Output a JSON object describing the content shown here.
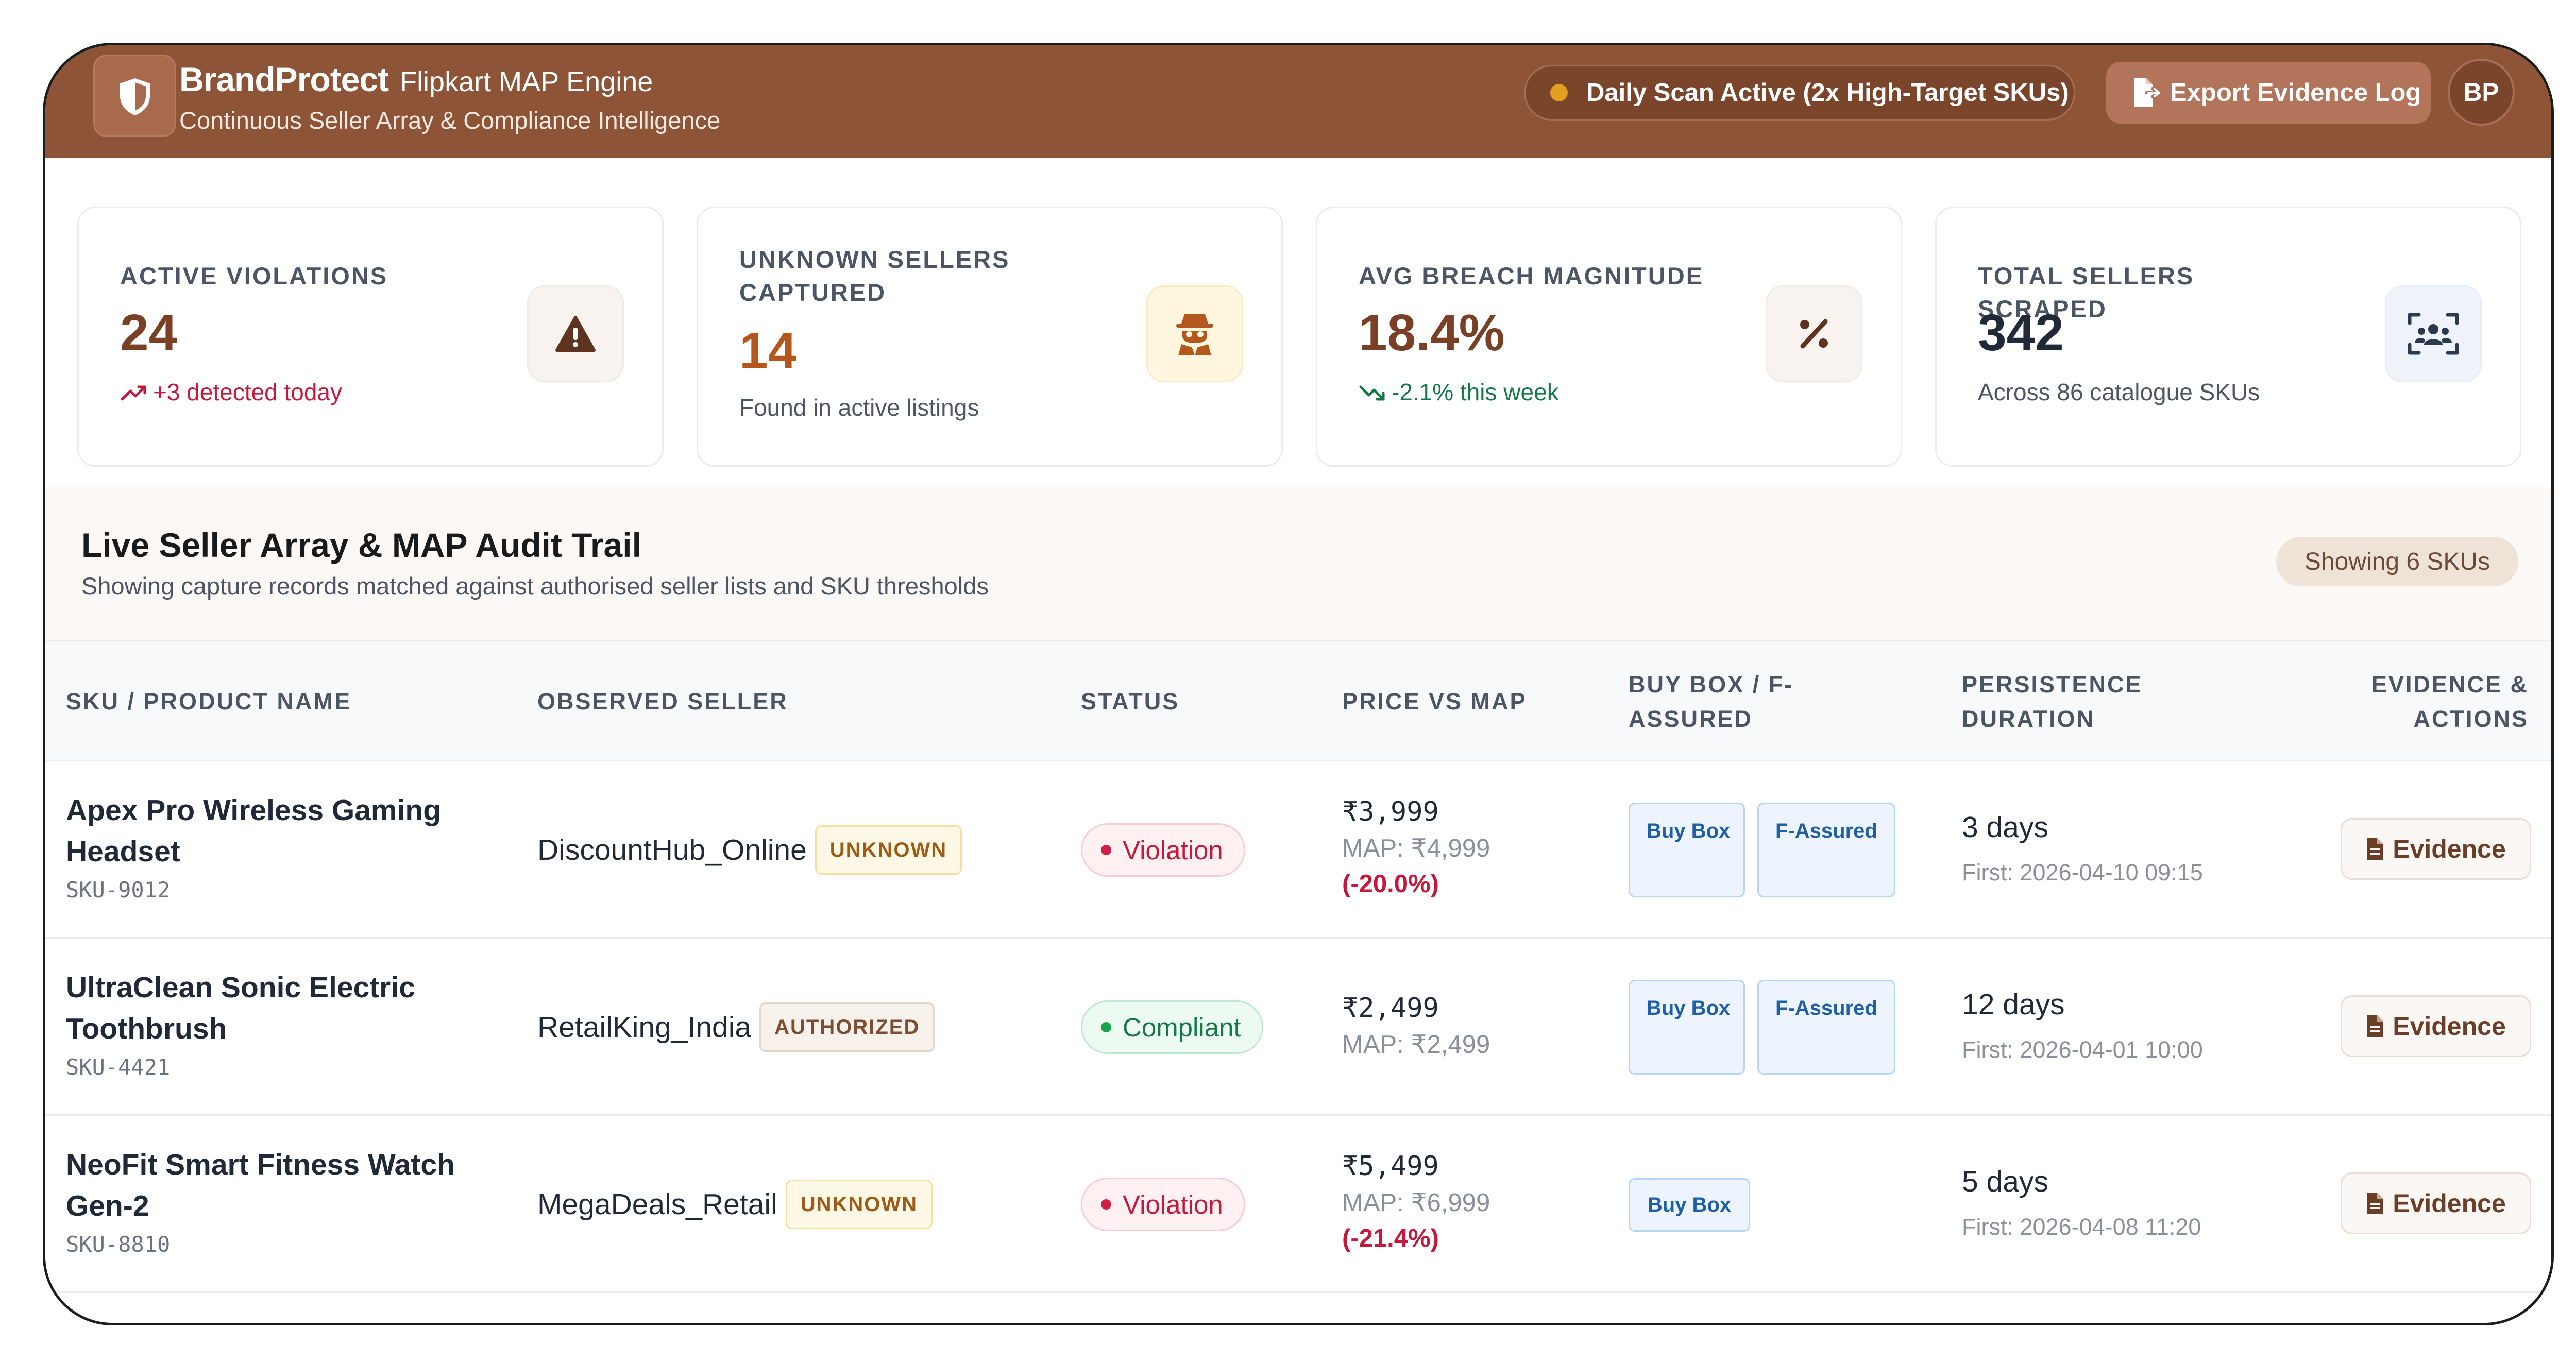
{
  "header": {
    "brand_name": "BrandProtect",
    "brand_sub": "Flipkart MAP Engine",
    "tagline": "Continuous Seller Array & Compliance Intelligence",
    "scan_status": "Daily Scan Active (2x High-Target SKUs)",
    "export_label": "Export Evidence Log",
    "avatar_initials": "BP",
    "colors": {
      "header_bg": "#8e5437",
      "scan_dot": "#e3a020"
    }
  },
  "stats": [
    {
      "label": "ACTIVE VIOLATIONS",
      "value": "24",
      "note": "+3 detected today",
      "icon": "warning-triangle-icon",
      "value_color": "#7a4026",
      "note_color": "#c5183a"
    },
    {
      "label": "UNKNOWN SELLERS CAPTURED",
      "value": "14",
      "note": "Found in active listings",
      "icon": "user-secret-icon",
      "value_color": "#b5561d",
      "note_color": "#4b5563"
    },
    {
      "label": "AVG BREACH MAGNITUDE",
      "value": "18.4%",
      "note": "-2.1% this week",
      "icon": "percent-icon",
      "value_color": "#7a4026",
      "note_color": "#137a45"
    },
    {
      "label": "TOTAL SELLERS SCRAPED",
      "value": "342",
      "note": "Across 86 catalogue SKUs",
      "icon": "users-scan-icon",
      "value_color": "#1f2937",
      "note_color": "#4b5563"
    }
  ],
  "audit": {
    "title": "Live Seller Array & MAP Audit Trail",
    "subtitle": "Showing capture records matched against authorised seller lists and SKU thresholds",
    "showing_badge": "Showing 6 SKUs"
  },
  "table": {
    "headers": {
      "product": "SKU / PRODUCT NAME",
      "seller": "OBSERVED SELLER",
      "status": "STATUS",
      "price": "PRICE VS MAP",
      "buybox": "BUY BOX / F-ASSURED",
      "persistence": "PERSISTENCE DURATION",
      "evidence": "EVIDENCE & ACTIONS"
    },
    "rows": [
      {
        "product": "Apex Pro Wireless Gaming Headset",
        "sku": "SKU-9012",
        "seller": "DiscountHub_Online",
        "seller_tag": "UNKNOWN",
        "status": "Violation",
        "price": "₹3,999",
        "map": "MAP: ₹4,999",
        "diff": "(-20.0%)",
        "buy_box": "Buy Box",
        "f_assured": "F-Assured",
        "days": "3 days",
        "first_seen": "First: 2026-04-10 09:15",
        "evidence": "Evidence"
      },
      {
        "product": "UltraClean Sonic Electric Toothbrush",
        "sku": "SKU-4421",
        "seller": "RetailKing_India",
        "seller_tag": "AUTHORIZED",
        "status": "Compliant",
        "price": "₹2,499",
        "map": "MAP: ₹2,499",
        "diff": "",
        "buy_box": "Buy Box",
        "f_assured": "F-Assured",
        "days": "12 days",
        "first_seen": "First: 2026-04-01 10:00",
        "evidence": "Evidence"
      },
      {
        "product": "NeoFit Smart Fitness Watch Gen-2",
        "sku": "SKU-8810",
        "seller": "MegaDeals_Retail",
        "seller_tag": "UNKNOWN",
        "status": "Violation",
        "price": "₹5,499",
        "map": "MAP: ₹6,999",
        "diff": "(-21.4%)",
        "buy_box": "Buy Box",
        "f_assured": "",
        "days": "5 days",
        "first_seen": "First: 2026-04-08 11:20",
        "evidence": "Evidence"
      }
    ]
  }
}
